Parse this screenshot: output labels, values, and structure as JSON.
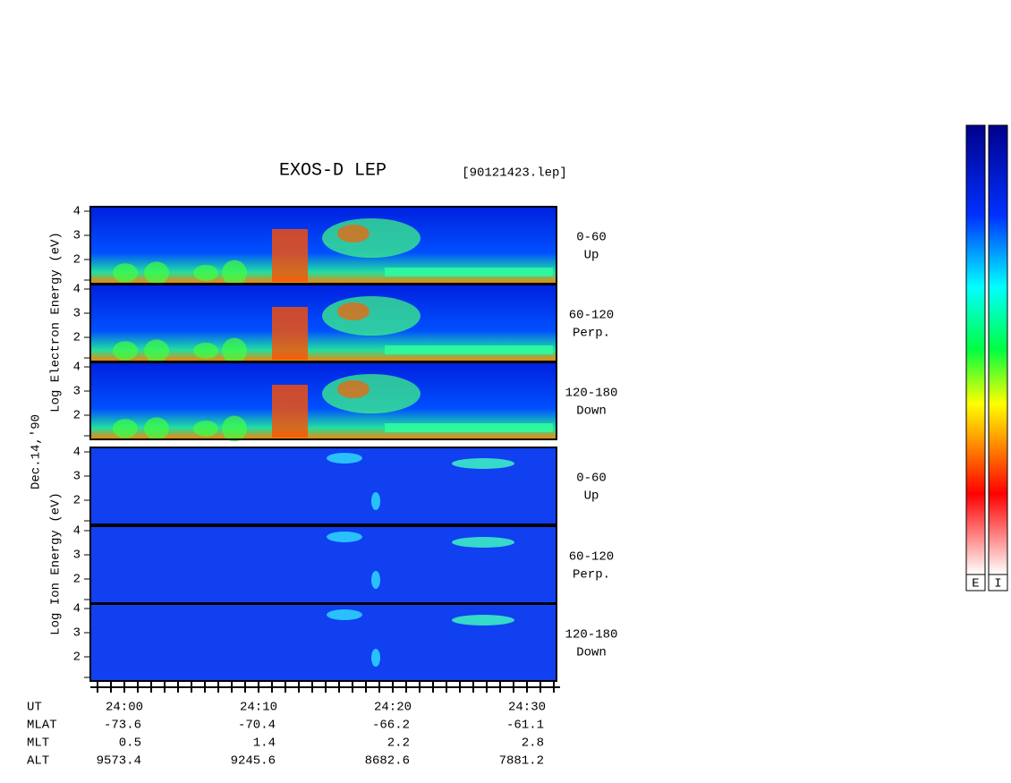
{
  "header": {
    "title": "EXOS-D LEP",
    "file": "[90121423.lep]"
  },
  "date": "Dec.14,'90",
  "electron_axis_label": "Log Electron Energy (eV)",
  "ion_axis_label": "Log Ion Energy (eV)",
  "panel_ticks": [
    4,
    3,
    2
  ],
  "panels": [
    {
      "species": "electron",
      "range": "0-60",
      "direction": "Up"
    },
    {
      "species": "electron",
      "range": "60-120",
      "direction": "Perp."
    },
    {
      "species": "electron",
      "range": "120-180",
      "direction": "Down"
    },
    {
      "species": "ion",
      "range": "0-60",
      "direction": "Up"
    },
    {
      "species": "ion",
      "range": "60-120",
      "direction": "Perp."
    },
    {
      "species": "ion",
      "range": "120-180",
      "direction": "Down"
    }
  ],
  "rows": [
    {
      "label": "UT",
      "values": [
        "24:00",
        "24:10",
        "24:20",
        "24:30"
      ]
    },
    {
      "label": "MLAT",
      "values": [
        -73.6,
        -70.4,
        -66.2,
        -61.1
      ]
    },
    {
      "label": "MLT",
      "values": [
        0.5,
        1.4,
        2.2,
        2.8
      ]
    },
    {
      "label": "ALT",
      "values": [
        9573.4,
        9245.6,
        8682.6,
        7881.2
      ]
    }
  ],
  "colorbars": [
    "E",
    "I"
  ]
}
